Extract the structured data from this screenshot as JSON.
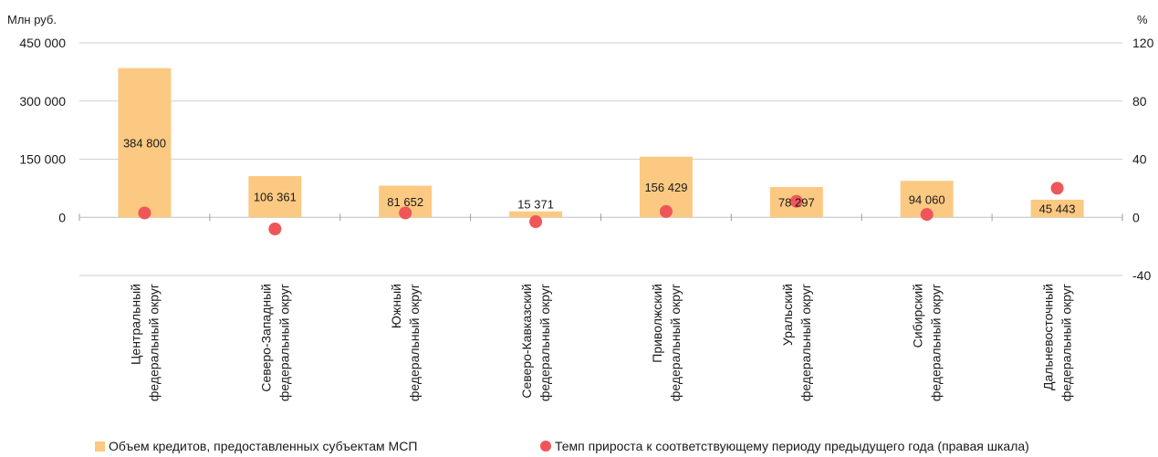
{
  "chart_data": {
    "type": "bar",
    "left_axis": {
      "unit": "Млн руб.",
      "ticks": [
        "450 000",
        "300 000",
        "150 000",
        "0"
      ],
      "ylim": [
        -150000,
        450000
      ]
    },
    "right_axis": {
      "unit": "%",
      "ticks": [
        "120",
        "80",
        "40",
        "0",
        "-40"
      ],
      "ylim": [
        -40,
        120
      ]
    },
    "categories": [
      [
        "Центральный",
        "федеральный округ"
      ],
      [
        "Северо-Западный",
        "федеральный округ"
      ],
      [
        "Южный",
        "федеральный округ"
      ],
      [
        "Северо-Кавказский",
        "федеральный округ"
      ],
      [
        "Приволжский",
        "федеральный округ"
      ],
      [
        "Уральский",
        "федеральный округ"
      ],
      [
        "Сибирский",
        "федеральный округ"
      ],
      [
        "Дальневосточный",
        "федеральный округ"
      ]
    ],
    "series": [
      {
        "name": "Объем кредитов, предоставленных субъектам МСП",
        "kind": "bar",
        "axis": "left",
        "color": "#fcc982",
        "values": [
          384800,
          106361,
          81652,
          15371,
          156429,
          78297,
          94060,
          45443
        ],
        "labels": [
          "384 800",
          "106 361",
          "81 652",
          "15 371",
          "156 429",
          "78 297",
          "94 060",
          "45 443"
        ]
      },
      {
        "name": "Темп прироста к соответствующему периоду предыдущего года (правая шкала)",
        "kind": "scatter",
        "axis": "right",
        "color": "#ef5659",
        "values": [
          3,
          -8,
          3,
          -3,
          4,
          11,
          2,
          20
        ]
      }
    ],
    "grid": true,
    "legend_position": "bottom"
  }
}
